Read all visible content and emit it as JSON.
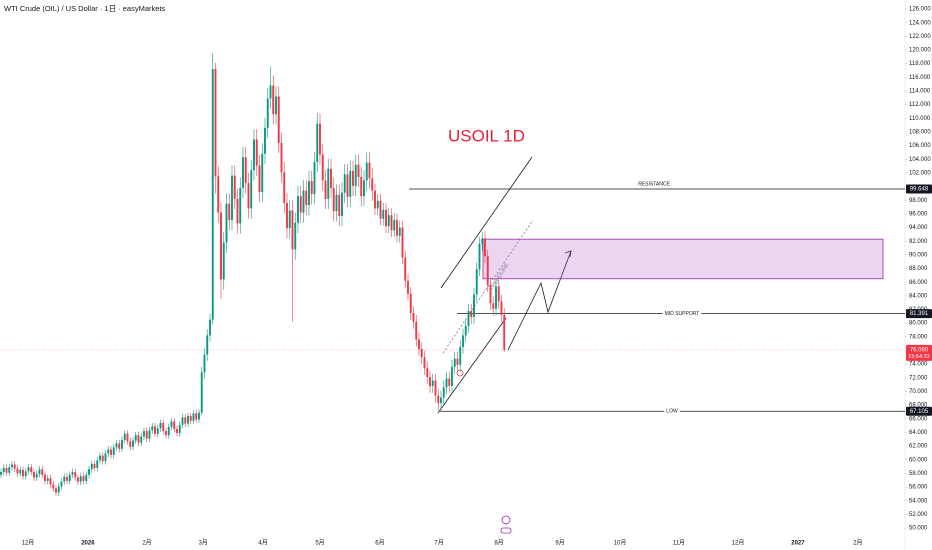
{
  "chart_data": {
    "type": "candlestick",
    "title": "WTI Crude (OIL) / US Dollar · 1日 · easyMarkets",
    "annotation": "USOIL 1D",
    "trendline_label": "TRENDLINE",
    "up_color": "#089981",
    "down_color": "#f23645",
    "categories": [
      null,
      null,
      null,
      null,
      null,
      null,
      null,
      null,
      null,
      null,
      null,
      null,
      null,
      null,
      null,
      null,
      null,
      null,
      null,
      null,
      null,
      null,
      null,
      null,
      null,
      null,
      null,
      null,
      null,
      null,
      null,
      null,
      null,
      null,
      null,
      null,
      null,
      null,
      null,
      null,
      null,
      null,
      null,
      null,
      null,
      null,
      null,
      null,
      null,
      null,
      null,
      null,
      null,
      null,
      null,
      null,
      null,
      null,
      null,
      null,
      null,
      null,
      null,
      null,
      null,
      null,
      null,
      null,
      null,
      null,
      null,
      null,
      null,
      null,
      null,
      null,
      null,
      null,
      null,
      null,
      null,
      null,
      null,
      null,
      null,
      null,
      null,
      null,
      null,
      null,
      null,
      null,
      null,
      null,
      null,
      null,
      null,
      null,
      null,
      null,
      null,
      null,
      null,
      null,
      null,
      null,
      null,
      null,
      null,
      null,
      null,
      null,
      null,
      null,
      null,
      null,
      null,
      null,
      null,
      null,
      null,
      null,
      null,
      null,
      null,
      null,
      null,
      null,
      null,
      null,
      null,
      null,
      null,
      null,
      null,
      null,
      null,
      null,
      null,
      null,
      null,
      null,
      null,
      null,
      null,
      null,
      null,
      null,
      null,
      null,
      null,
      null,
      null,
      null,
      null,
      null,
      null,
      null,
      null,
      null,
      null,
      null,
      null,
      null,
      null,
      null,
      null,
      null,
      null,
      null,
      null,
      null,
      null,
      null,
      null,
      null,
      null,
      null,
      null,
      null,
      null,
      null,
      null,
      null
    ],
    "open": [
      57.8,
      58.2,
      58.8,
      58.1,
      58.9,
      59.3,
      58.7,
      58.0,
      58.5,
      57.6,
      58.3,
      58.9,
      58.2,
      57.4,
      57.9,
      58.6,
      57.8,
      56.9,
      57.3,
      56.4,
      55.8,
      55.2,
      56.1,
      56.8,
      57.5,
      56.9,
      57.8,
      58.2,
      57.4,
      56.8,
      57.6,
      56.9,
      57.8,
      58.6,
      59.4,
      58.8,
      59.9,
      60.6,
      59.8,
      60.9,
      61.5,
      60.7,
      61.8,
      62.4,
      61.6,
      62.9,
      63.8,
      62.7,
      61.9,
      62.8,
      63.6,
      62.5,
      63.4,
      64.2,
      63.1,
      64.3,
      64.9,
      63.8,
      64.6,
      65.4,
      64.2,
      63.6,
      64.8,
      65.6,
      64.5,
      63.9,
      65.1,
      66.2,
      65.3,
      66.4,
      65.7,
      66.8,
      65.9,
      66.9,
      72.8,
      75.4,
      78.2,
      80.5,
      117.2,
      101.5,
      96.2,
      86.4,
      91.8,
      97.5,
      95.1,
      101.6,
      98.2,
      94.6,
      99.8,
      104.3,
      100.5,
      96.8,
      102.4,
      106.9,
      103.1,
      99.2,
      104.8,
      108.6,
      112.9,
      114.8,
      110.6,
      113.2,
      106.4,
      102.1,
      97.6,
      93.9,
      96.5,
      90.8,
      94.7,
      98.6,
      96.2,
      99.4,
      97.3,
      100.8,
      98.9,
      103.6,
      109.2,
      104.7,
      100.9,
      98.2,
      102.6,
      99.8,
      96.4,
      98.8,
      95.7,
      99.1,
      101.8,
      98.5,
      102.3,
      100.1,
      103.2,
      101.4,
      98.6,
      100.9,
      103.5,
      101.2,
      99.4,
      96.8,
      97.9,
      95.3,
      96.6,
      94.2,
      95.8,
      93.6,
      95.1,
      92.8,
      94.0,
      89.6,
      86.2,
      84.3,
      81.5,
      80.2,
      77.6,
      76.2,
      75.0,
      73.4,
      72.1,
      70.8,
      71.6,
      69.4,
      68.3,
      69.1,
      70.6,
      71.9,
      70.8,
      73.6,
      74.8,
      73.9,
      76.5,
      78.2,
      79.6,
      81.8,
      80.9,
      84.2,
      87.9,
      91.6,
      92.4,
      89.8,
      85.6,
      82.9,
      82.1,
      85.4,
      83.2,
      81.2
    ],
    "high": [
      58.7,
      59.3,
      59.3,
      59.4,
      59.8,
      59.8,
      59.2,
      59.0,
      59.0,
      58.8,
      59.4,
      59.4,
      58.7,
      58.4,
      59.1,
      59.1,
      58.3,
      57.8,
      57.8,
      56.9,
      56.3,
      56.6,
      57.3,
      58.0,
      58.0,
      58.3,
      58.7,
      58.7,
      57.9,
      58.1,
      58.1,
      58.3,
      59.1,
      59.9,
      59.9,
      60.4,
      61.1,
      61.1,
      61.4,
      62.0,
      62.0,
      62.3,
      62.9,
      62.9,
      63.4,
      64.3,
      64.3,
      63.2,
      63.3,
      64.1,
      64.1,
      63.9,
      64.7,
      64.7,
      64.8,
      65.4,
      65.4,
      65.1,
      65.9,
      65.9,
      64.7,
      65.3,
      66.1,
      66.1,
      65.0,
      65.6,
      66.7,
      66.7,
      66.9,
      66.9,
      67.3,
      67.3,
      67.4,
      73.6,
      76.3,
      79.1,
      81.4,
      119.5,
      118.1,
      103.0,
      97.7,
      93.3,
      99.0,
      99.0,
      103.1,
      103.1,
      99.7,
      101.3,
      105.8,
      105.8,
      102.0,
      103.9,
      108.4,
      108.4,
      104.6,
      106.3,
      110.1,
      114.4,
      117.6,
      116.3,
      114.7,
      114.7,
      107.9,
      103.6,
      99.1,
      98.0,
      98.0,
      96.2,
      100.1,
      100.1,
      100.9,
      100.9,
      102.3,
      102.3,
      105.1,
      110.8,
      110.7,
      106.2,
      102.4,
      104.1,
      104.1,
      101.3,
      100.3,
      100.3,
      100.6,
      103.3,
      103.3,
      103.8,
      103.8,
      104.7,
      104.7,
      102.9,
      102.4,
      105.0,
      105.0,
      102.7,
      100.4,
      98.9,
      98.9,
      97.6,
      97.6,
      96.8,
      96.8,
      96.1,
      96.1,
      95.0,
      95.0,
      90.6,
      87.2,
      85.3,
      82.5,
      81.2,
      78.6,
      77.2,
      76.0,
      74.4,
      73.1,
      72.6,
      72.6,
      70.4,
      70.1,
      71.6,
      72.9,
      72.9,
      74.6,
      75.8,
      75.8,
      77.5,
      79.2,
      80.6,
      82.8,
      82.8,
      85.2,
      88.9,
      92.6,
      93.4,
      93.4,
      90.8,
      86.6,
      83.9,
      86.4,
      86.4,
      84.2,
      82.2
    ],
    "low": [
      57.3,
      57.7,
      57.6,
      57.6,
      58.4,
      58.2,
      57.5,
      57.5,
      57.1,
      57.1,
      57.8,
      57.7,
      56.9,
      56.9,
      57.4,
      57.3,
      56.4,
      56.4,
      55.9,
      55.3,
      54.7,
      54.7,
      55.6,
      56.3,
      56.4,
      56.4,
      57.3,
      56.9,
      56.3,
      56.3,
      56.4,
      56.4,
      57.3,
      58.1,
      58.3,
      58.3,
      59.4,
      59.3,
      59.3,
      60.4,
      60.2,
      60.2,
      61.3,
      61.1,
      61.1,
      62.4,
      62.2,
      61.4,
      61.4,
      62.3,
      62.0,
      62.0,
      62.9,
      62.6,
      62.6,
      63.8,
      63.3,
      63.3,
      64.1,
      63.7,
      63.1,
      63.1,
      64.3,
      64.0,
      63.4,
      63.4,
      64.6,
      64.8,
      64.8,
      65.2,
      65.2,
      65.4,
      65.4,
      66.5,
      71.9,
      74.5,
      77.3,
      79.8,
      99.0,
      94.7,
      83.5,
      84.9,
      90.3,
      93.6,
      93.6,
      96.7,
      93.1,
      93.1,
      98.3,
      99.0,
      95.3,
      95.3,
      100.9,
      101.6,
      97.7,
      97.7,
      103.3,
      107.1,
      111.4,
      109.1,
      109.1,
      104.9,
      100.6,
      96.1,
      92.4,
      92.4,
      80.2,
      89.3,
      93.2,
      94.7,
      94.7,
      95.8,
      95.8,
      97.4,
      97.4,
      102.1,
      103.2,
      99.4,
      96.7,
      96.7,
      98.3,
      94.9,
      94.9,
      94.2,
      94.2,
      97.6,
      97.0,
      97.0,
      98.6,
      98.6,
      99.9,
      97.1,
      97.1,
      99.4,
      99.7,
      97.9,
      95.8,
      95.8,
      94.3,
      94.3,
      93.2,
      93.2,
      92.6,
      92.6,
      91.8,
      91.8,
      88.6,
      85.2,
      83.3,
      80.5,
      79.2,
      76.6,
      75.2,
      74.0,
      72.4,
      71.1,
      69.8,
      69.8,
      68.4,
      67.2,
      67.3,
      68.1,
      69.6,
      69.8,
      69.8,
      72.6,
      72.9,
      72.9,
      75.5,
      77.2,
      78.6,
      79.9,
      79.9,
      83.2,
      86.9,
      90.6,
      88.8,
      84.6,
      81.9,
      81.1,
      81.1,
      82.2,
      80.2,
      75.8
    ],
    "close": [
      58.2,
      58.8,
      58.1,
      58.9,
      59.3,
      58.7,
      58.0,
      58.5,
      57.6,
      58.3,
      58.9,
      58.2,
      57.4,
      57.9,
      58.6,
      57.8,
      56.9,
      57.3,
      56.4,
      55.8,
      55.2,
      56.1,
      56.8,
      57.5,
      56.9,
      57.8,
      58.2,
      57.4,
      56.8,
      57.6,
      56.9,
      57.8,
      58.6,
      59.4,
      58.8,
      59.9,
      60.6,
      59.8,
      60.9,
      61.5,
      60.7,
      61.8,
      62.4,
      61.6,
      62.9,
      63.8,
      62.7,
      61.9,
      62.8,
      63.6,
      62.5,
      63.4,
      64.2,
      63.1,
      64.3,
      64.9,
      63.8,
      64.6,
      65.4,
      64.2,
      63.6,
      64.8,
      65.6,
      64.5,
      63.9,
      65.1,
      66.2,
      65.3,
      66.4,
      65.7,
      66.8,
      65.9,
      66.9,
      72.8,
      75.4,
      78.2,
      80.5,
      117.2,
      101.5,
      96.2,
      86.4,
      91.8,
      97.5,
      95.1,
      101.6,
      98.2,
      94.6,
      99.8,
      104.3,
      100.5,
      96.8,
      102.4,
      106.9,
      103.1,
      99.2,
      104.8,
      108.6,
      112.9,
      114.8,
      110.6,
      113.2,
      106.4,
      102.1,
      97.6,
      93.9,
      96.5,
      90.8,
      94.7,
      98.6,
      96.2,
      99.4,
      97.3,
      100.8,
      98.9,
      103.6,
      109.2,
      104.7,
      100.9,
      98.2,
      102.6,
      99.8,
      96.4,
      98.8,
      95.7,
      99.1,
      101.8,
      98.5,
      102.3,
      100.1,
      103.2,
      101.4,
      98.6,
      100.9,
      103.5,
      101.2,
      99.4,
      96.8,
      97.9,
      95.3,
      96.6,
      94.2,
      95.8,
      93.6,
      95.1,
      92.8,
      94.0,
      89.6,
      86.2,
      84.3,
      81.5,
      80.2,
      77.6,
      76.2,
      75.0,
      73.4,
      72.1,
      70.8,
      71.6,
      69.4,
      68.3,
      69.1,
      70.6,
      71.9,
      70.8,
      73.6,
      74.8,
      73.9,
      76.5,
      78.2,
      79.6,
      81.8,
      80.9,
      84.2,
      87.9,
      91.6,
      92.4,
      89.8,
      85.6,
      82.9,
      82.1,
      85.4,
      83.2,
      81.2,
      76.09
    ],
    "xlim": [
      -0.36,
      328.73
    ],
    "xticks": [
      {
        "value": 9.8,
        "label": "12月"
      },
      {
        "value": 31.6,
        "label": "2026"
      },
      {
        "value": 53.1,
        "label": "2月"
      },
      {
        "value": 73.5,
        "label": "3月"
      },
      {
        "value": 95.3,
        "label": "4月"
      },
      {
        "value": 116,
        "label": "5月"
      },
      {
        "value": 137.8,
        "label": "6月"
      },
      {
        "value": 159.3,
        "label": "7月"
      },
      {
        "value": 181.1,
        "label": "8月"
      },
      {
        "value": 203.3,
        "label": "9月"
      },
      {
        "value": 225.1,
        "label": "10月"
      },
      {
        "value": 246.5,
        "label": "11月"
      },
      {
        "value": 268,
        "label": "12月"
      },
      {
        "value": 289.8,
        "label": "2027"
      },
      {
        "value": 311.6,
        "label": "2月"
      }
    ],
    "ylim": [
      48.98,
      127.32
    ],
    "yticks": [
      {
        "value": 126,
        "label": "126.000"
      },
      {
        "value": 124,
        "label": "124.000"
      },
      {
        "value": 122,
        "label": "122.000"
      },
      {
        "value": 120,
        "label": "120.000"
      },
      {
        "value": 118,
        "label": "118.000"
      },
      {
        "value": 116,
        "label": "116.000"
      },
      {
        "value": 114,
        "label": "114.000"
      },
      {
        "value": 112,
        "label": "112.000"
      },
      {
        "value": 110,
        "label": "110.000"
      },
      {
        "value": 108,
        "label": "108.000"
      },
      {
        "value": 106,
        "label": "106.000"
      },
      {
        "value": 104,
        "label": "104.000"
      },
      {
        "value": 102,
        "label": "102.000"
      },
      {
        "value": 98,
        "label": "98.000"
      },
      {
        "value": 96,
        "label": "96.000"
      },
      {
        "value": 94,
        "label": "94.000"
      },
      {
        "value": 92,
        "label": "92.000"
      },
      {
        "value": 90,
        "label": "90.000"
      },
      {
        "value": 88,
        "label": "88.000"
      },
      {
        "value": 86,
        "label": "86.000"
      },
      {
        "value": 84,
        "label": "84.000"
      },
      {
        "value": 82,
        "label": "82.000"
      },
      {
        "value": 80,
        "label": "80.000"
      },
      {
        "value": 78,
        "label": "78.000"
      },
      {
        "value": 74,
        "label": "74.000"
      },
      {
        "value": 72,
        "label": "72.000"
      },
      {
        "value": 70,
        "label": "70.000"
      },
      {
        "value": 68,
        "label": "68.000"
      },
      {
        "value": 66,
        "label": "66.000"
      },
      {
        "value": 64,
        "label": "64.000"
      },
      {
        "value": 62,
        "label": "62.000"
      },
      {
        "value": 60,
        "label": "60.000"
      },
      {
        "value": 58,
        "label": "58.000"
      },
      {
        "value": 56,
        "label": "56.000"
      },
      {
        "value": 54,
        "label": "54.000"
      },
      {
        "value": 52,
        "label": "52.000"
      },
      {
        "value": 50,
        "label": "50.000"
      }
    ],
    "levels": [
      {
        "name": "RESISTANCE",
        "value": 99.648
      },
      {
        "name": "MID SUPPORT",
        "value": 81.391
      },
      {
        "name": "LOW",
        "value": 67.105
      }
    ],
    "zone": [
      86.5,
      92.3
    ],
    "last_price": {
      "value": 76.09,
      "label": "76.090"
    },
    "countdown": "15:54:33"
  }
}
